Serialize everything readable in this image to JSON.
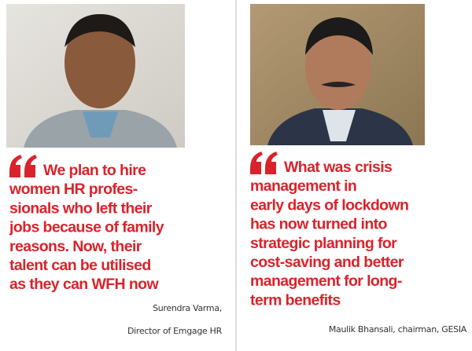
{
  "quotes": [
    {
      "lines": [
        "We plan to hire",
        "women HR profes-",
        "sionals who left their",
        "jobs because of family",
        "reasons. Now, their",
        "talent can be utilised",
        "as they can WFH now"
      ],
      "attribution": [
        "Surendra Varma,",
        "Director of Emgage HR"
      ]
    },
    {
      "lines": [
        "What was crisis",
        "management in",
        "early days of lockdown",
        "has now turned into",
        "strategic planning for",
        "cost-saving and better",
        "management for long-",
        "term benefits"
      ],
      "attribution": [
        "Maulik Bhansali, chairman, GESIA"
      ]
    }
  ]
}
